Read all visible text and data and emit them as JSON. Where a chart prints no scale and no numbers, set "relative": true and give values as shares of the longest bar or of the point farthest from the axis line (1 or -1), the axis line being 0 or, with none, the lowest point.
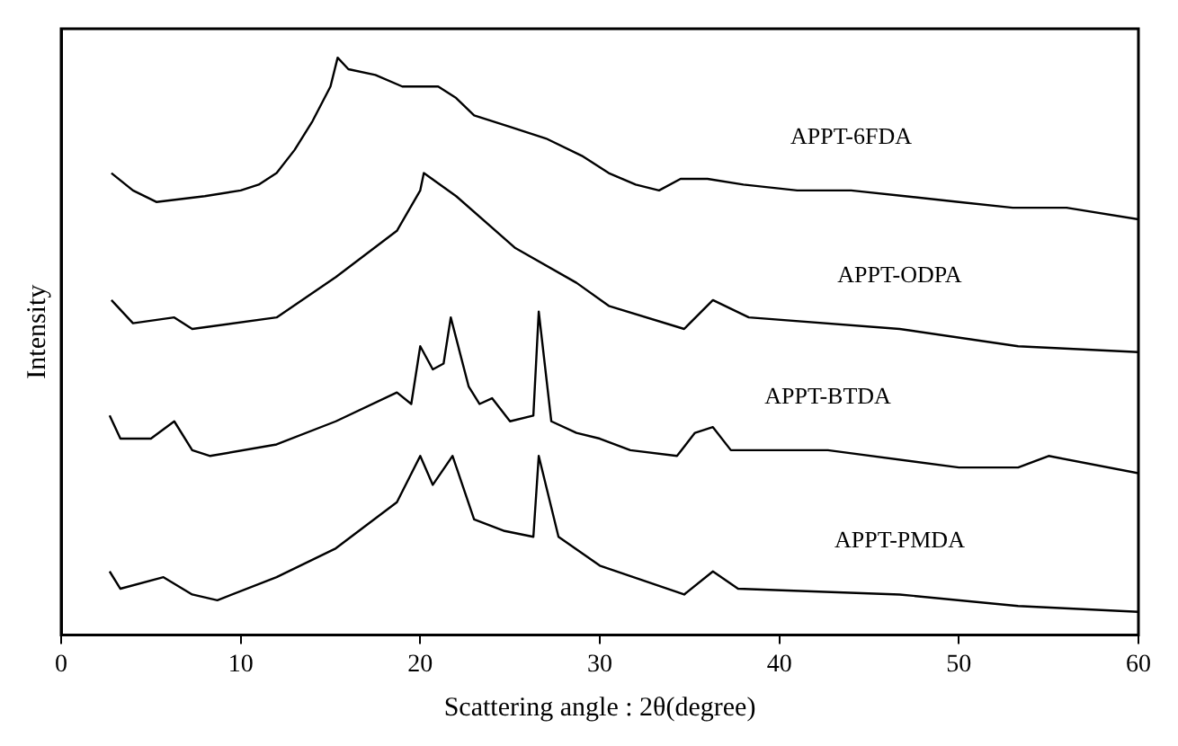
{
  "chart_data": {
    "type": "line",
    "relative": true,
    "xlabel": "Scattering angle : 2θ(degree)",
    "ylabel": "Intensity",
    "xlim": [
      0,
      60
    ],
    "xticks": [
      0,
      10,
      20,
      30,
      40,
      50,
      60
    ],
    "grid": false,
    "legend": false,
    "marker": "none",
    "line_style": "solid",
    "series": [
      {
        "name": "APPT-6FDA",
        "color": "#000000",
        "x": [
          2.8,
          4,
          5.3,
          8,
          10,
          11,
          12,
          13,
          14,
          15,
          15.4,
          16,
          17.5,
          19,
          21,
          22,
          23,
          25,
          27,
          29,
          30.5,
          32,
          33.3,
          34.5,
          36,
          38,
          41,
          44,
          47,
          50,
          53,
          56,
          60
        ],
        "values": [
          0.8,
          0.77,
          0.75,
          0.76,
          0.77,
          0.78,
          0.8,
          0.84,
          0.89,
          0.95,
          1.0,
          0.98,
          0.97,
          0.95,
          0.95,
          0.93,
          0.9,
          0.88,
          0.86,
          0.83,
          0.8,
          0.78,
          0.77,
          0.79,
          0.79,
          0.78,
          0.77,
          0.77,
          0.76,
          0.75,
          0.74,
          0.74,
          0.72
        ]
      },
      {
        "name": "APPT-ODPA",
        "color": "#000000",
        "x": [
          2.8,
          4,
          6.3,
          7.3,
          12,
          15.3,
          18.7,
          20,
          20.2,
          22,
          25.3,
          28.7,
          30.5,
          34.7,
          36.3,
          38.3,
          46.7,
          53.3,
          60
        ],
        "values": [
          0.58,
          0.54,
          0.55,
          0.53,
          0.55,
          0.62,
          0.7,
          0.77,
          0.8,
          0.76,
          0.67,
          0.61,
          0.57,
          0.53,
          0.58,
          0.55,
          0.53,
          0.5,
          0.49
        ]
      },
      {
        "name": "APPT-BTDA",
        "color": "#000000",
        "x": [
          2.7,
          3.3,
          5,
          6.3,
          7.3,
          8.3,
          12,
          15.3,
          18.7,
          19.5,
          20,
          20.7,
          21.3,
          21.7,
          22.7,
          23.3,
          24,
          25,
          26.3,
          26.6,
          27.3,
          28.7,
          30,
          31.7,
          34.3,
          35.3,
          36.3,
          37.3,
          42.7,
          50,
          53.3,
          55,
          60
        ],
        "values": [
          0.38,
          0.34,
          0.34,
          0.37,
          0.32,
          0.31,
          0.33,
          0.37,
          0.42,
          0.4,
          0.5,
          0.46,
          0.47,
          0.55,
          0.43,
          0.4,
          0.41,
          0.37,
          0.38,
          0.56,
          0.37,
          0.35,
          0.34,
          0.32,
          0.31,
          0.35,
          0.36,
          0.32,
          0.32,
          0.29,
          0.29,
          0.31,
          0.28
        ]
      },
      {
        "name": "APPT-PMDA",
        "color": "#000000",
        "x": [
          2.7,
          3.3,
          5.7,
          7.3,
          8.7,
          12,
          15.3,
          18.7,
          20,
          20.7,
          21.8,
          23,
          24.7,
          26.3,
          26.6,
          27.7,
          30,
          34.7,
          36.3,
          37.7,
          46.7,
          53.3,
          60
        ],
        "values": [
          0.11,
          0.08,
          0.1,
          0.07,
          0.06,
          0.1,
          0.15,
          0.23,
          0.31,
          0.26,
          0.31,
          0.2,
          0.18,
          0.17,
          0.31,
          0.17,
          0.12,
          0.07,
          0.11,
          0.08,
          0.07,
          0.05,
          0.04
        ]
      }
    ]
  }
}
